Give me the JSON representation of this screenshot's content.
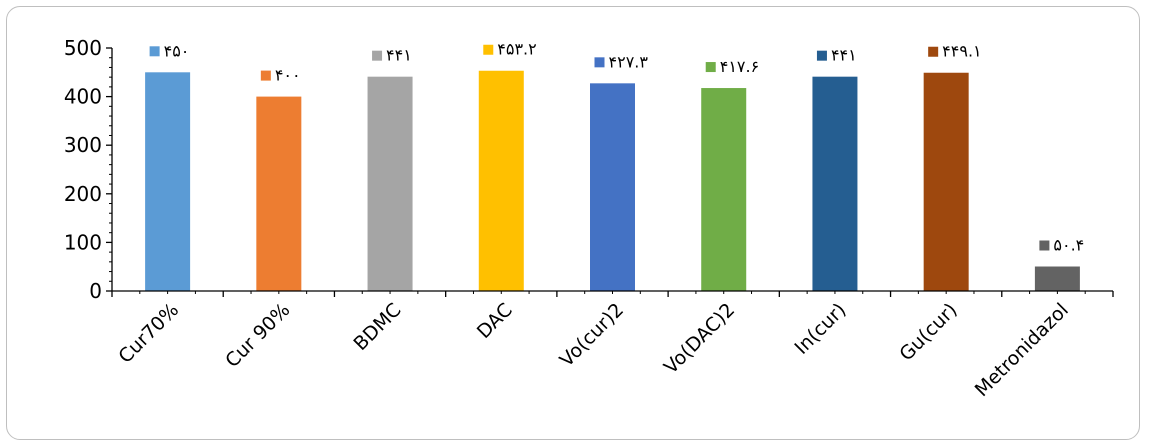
{
  "chart_data": {
    "type": "bar",
    "categories": [
      "Cur70%",
      "Cur 90%",
      "BDMC",
      "DAC",
      "Vo(cur)2",
      "Vo(DAC)2",
      "In(cur)",
      "Gu(cur)",
      "Metronidazol"
    ],
    "values": [
      450,
      400,
      441,
      453.2,
      427.3,
      417.6,
      441,
      449.1,
      50.4
    ],
    "data_labels": [
      "۴۵۰",
      "۴۰۰",
      "۴۴۱",
      "۴۵۳.۲",
      "۴۲۷.۳",
      "۴۱۷.۶",
      "۴۴۱",
      "۴۴۹.۱",
      "۵۰.۴"
    ],
    "colors": [
      "#5B9BD5",
      "#ED7D31",
      "#A5A5A5",
      "#FFC000",
      "#4472C4",
      "#70AD47",
      "#255E91",
      "#9E480E",
      "#636363"
    ],
    "ylim": [
      0,
      500
    ],
    "yticks": [
      "0",
      "100",
      "200",
      "300",
      "400",
      "500"
    ],
    "title": "",
    "xlabel": "",
    "ylabel": "",
    "grid": false,
    "legend": "none"
  }
}
